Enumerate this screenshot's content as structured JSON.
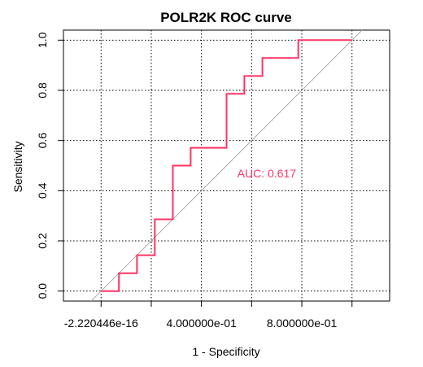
{
  "chart_data": {
    "type": "line",
    "title": "POLR2K ROC curve",
    "xlabel": "1 - Specificity",
    "ylabel": "Sensitivity",
    "xlim": [
      -0.15,
      1.15
    ],
    "ylim": [
      -0.04,
      1.04
    ],
    "x_ticks": [
      0,
      0.2,
      0.4,
      0.6,
      0.8,
      1.0
    ],
    "x_tick_labels": [
      "-2.220446e-16",
      "",
      "4.000000e-01",
      "",
      "8.000000e-01",
      ""
    ],
    "y_ticks": [
      0,
      0.2,
      0.4,
      0.6,
      0.8,
      1.0
    ],
    "y_tick_labels": [
      "0.0",
      "0.2",
      "0.4",
      "0.6",
      "0.8",
      "1.0"
    ],
    "grid": true,
    "diagonal_color": "#aaaaaa",
    "series": [
      {
        "color": "#ff3366",
        "x": [
          0.0,
          0.071,
          0.071,
          0.143,
          0.143,
          0.214,
          0.214,
          0.286,
          0.286,
          0.357,
          0.357,
          0.5,
          0.5,
          0.571,
          0.571,
          0.643,
          0.643,
          0.786,
          0.786,
          1.0
        ],
        "y": [
          0.0,
          0.0,
          0.071,
          0.071,
          0.143,
          0.143,
          0.286,
          0.286,
          0.5,
          0.5,
          0.571,
          0.571,
          0.786,
          0.786,
          0.857,
          0.857,
          0.929,
          0.929,
          1.0,
          1.0
        ]
      }
    ],
    "annotation": {
      "text": "AUC: 0.617",
      "x": 0.66,
      "y": 0.47,
      "color": "#ff3366"
    }
  }
}
